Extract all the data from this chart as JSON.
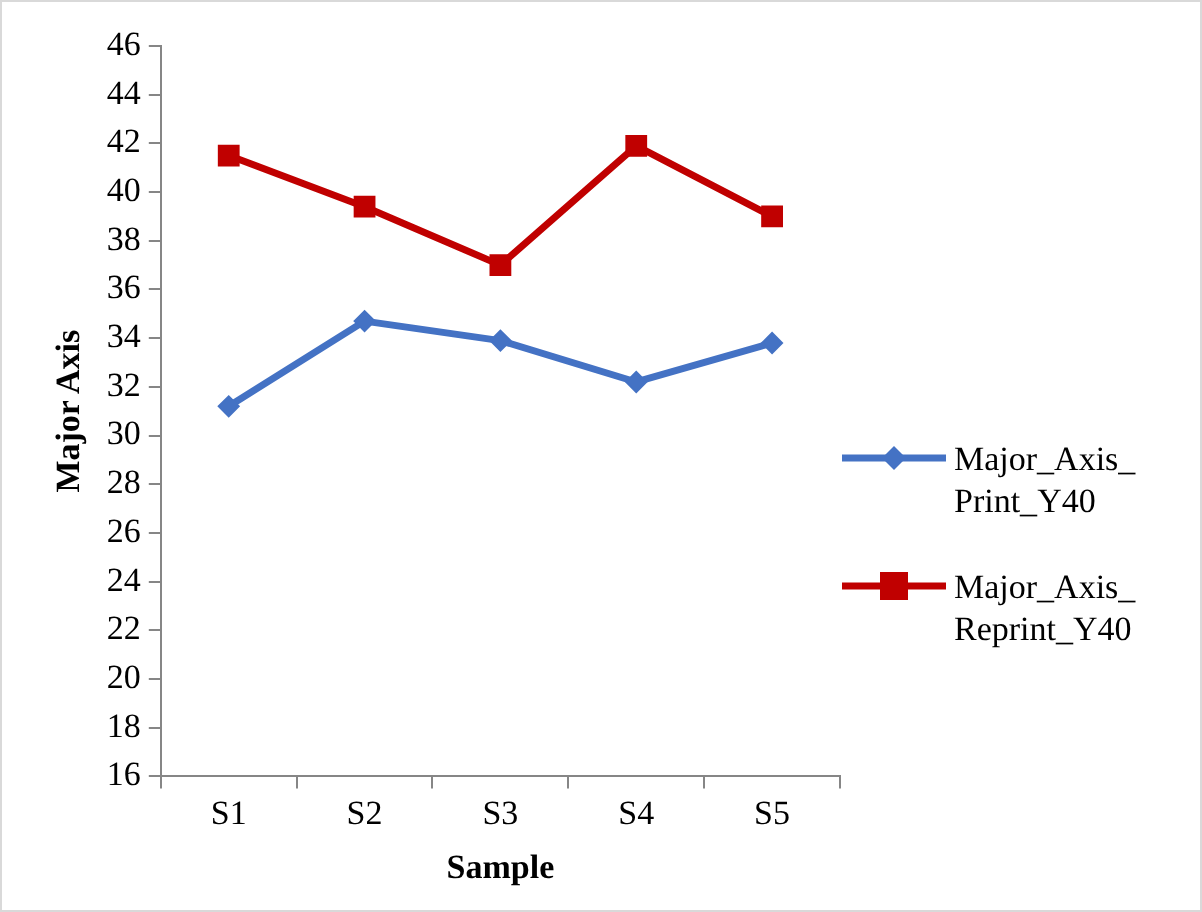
{
  "chart_data": {
    "type": "line",
    "xlabel": "Sample",
    "ylabel": "Major Axis",
    "categories": [
      "S1",
      "S2",
      "S3",
      "S4",
      "S5"
    ],
    "series": [
      {
        "name": "Major_Axis_Print_Y40",
        "color": "#4472c4",
        "marker": "diamond",
        "values": [
          31.2,
          34.7,
          33.9,
          32.2,
          33.8
        ]
      },
      {
        "name": "Major_Axis_Reprint_Y40",
        "color": "#c00000",
        "marker": "square",
        "values": [
          41.5,
          39.4,
          37.0,
          41.9,
          39.0
        ]
      }
    ],
    "ylim": [
      16,
      46
    ],
    "yticks": [
      16,
      18,
      20,
      22,
      24,
      26,
      28,
      30,
      32,
      34,
      36,
      38,
      40,
      42,
      44,
      46
    ],
    "grid": false,
    "legend": "right",
    "line_style": "solid"
  }
}
